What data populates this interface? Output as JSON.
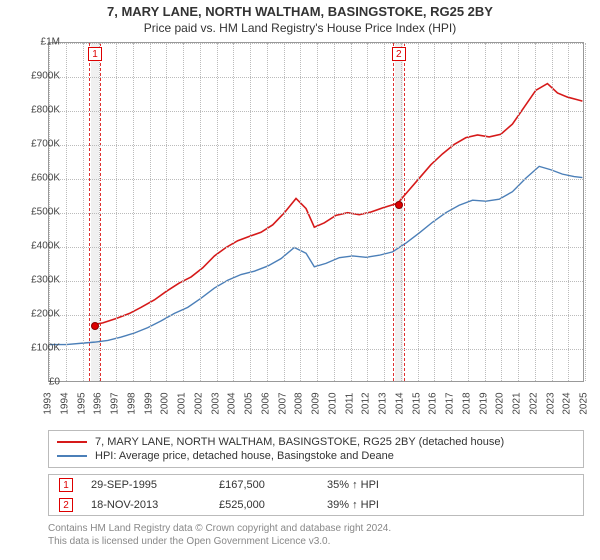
{
  "title": {
    "line1": "7, MARY LANE, NORTH WALTHAM, BASINGSTOKE, RG25 2BY",
    "line2": "Price paid vs. HM Land Registry's House Price Index (HPI)"
  },
  "chart": {
    "type": "line",
    "background_color": "#ffffff",
    "grid_color": "#bbbbbb",
    "axis_color": "#999999",
    "label_fontsize": 10,
    "label_color": "#444444",
    "x": {
      "min": 1993,
      "max": 2025,
      "tick_step": 1,
      "labels": [
        "1993",
        "1994",
        "1995",
        "1996",
        "1997",
        "1998",
        "1999",
        "2000",
        "2001",
        "2002",
        "2003",
        "2004",
        "2005",
        "2006",
        "2007",
        "2008",
        "2009",
        "2010",
        "2011",
        "2012",
        "2013",
        "2014",
        "2015",
        "2016",
        "2017",
        "2018",
        "2019",
        "2020",
        "2021",
        "2022",
        "2023",
        "2024",
        "2025"
      ]
    },
    "y": {
      "min": 0,
      "max": 1000000,
      "tick_step": 100000,
      "labels": [
        "£0",
        "£100K",
        "£200K",
        "£300K",
        "£400K",
        "£500K",
        "£600K",
        "£700K",
        "£800K",
        "£900K",
        "£1M"
      ]
    },
    "series": [
      {
        "id": "property",
        "label": "7, MARY LANE, NORTH WALTHAM, BASINGSTOKE, RG25 2BY (detached house)",
        "color": "#d61a1a",
        "line_width": 1.6,
        "points": [
          [
            1995.7,
            167500
          ],
          [
            1996.2,
            172000
          ],
          [
            1997.0,
            185000
          ],
          [
            1997.8,
            200000
          ],
          [
            1998.5,
            218000
          ],
          [
            1999.3,
            240000
          ],
          [
            2000.0,
            265000
          ],
          [
            2000.8,
            290000
          ],
          [
            2001.5,
            308000
          ],
          [
            2002.2,
            335000
          ],
          [
            2002.9,
            370000
          ],
          [
            2003.6,
            395000
          ],
          [
            2004.3,
            415000
          ],
          [
            2005.0,
            428000
          ],
          [
            2005.7,
            440000
          ],
          [
            2006.4,
            462000
          ],
          [
            2007.1,
            498000
          ],
          [
            2007.8,
            540000
          ],
          [
            2008.4,
            510000
          ],
          [
            2008.9,
            455000
          ],
          [
            2009.5,
            468000
          ],
          [
            2010.2,
            490000
          ],
          [
            2010.9,
            498000
          ],
          [
            2011.6,
            492000
          ],
          [
            2012.3,
            500000
          ],
          [
            2013.0,
            512000
          ],
          [
            2013.9,
            526000
          ],
          [
            2014.5,
            560000
          ],
          [
            2015.2,
            600000
          ],
          [
            2015.9,
            640000
          ],
          [
            2016.6,
            672000
          ],
          [
            2017.3,
            700000
          ],
          [
            2018.0,
            720000
          ],
          [
            2018.7,
            728000
          ],
          [
            2019.4,
            722000
          ],
          [
            2020.1,
            730000
          ],
          [
            2020.8,
            760000
          ],
          [
            2021.5,
            810000
          ],
          [
            2022.2,
            860000
          ],
          [
            2022.9,
            880000
          ],
          [
            2023.5,
            852000
          ],
          [
            2024.1,
            840000
          ],
          [
            2024.7,
            832000
          ],
          [
            2025.0,
            828000
          ]
        ]
      },
      {
        "id": "hpi",
        "label": "HPI: Average price, detached house, Basingstoke and Deane",
        "color": "#4b7fb8",
        "line_width": 1.4,
        "points": [
          [
            1993.0,
            108000
          ],
          [
            1994.0,
            108000
          ],
          [
            1995.0,
            112000
          ],
          [
            1995.7,
            115000
          ],
          [
            1996.5,
            120000
          ],
          [
            1997.3,
            130000
          ],
          [
            1998.1,
            142000
          ],
          [
            1998.9,
            158000
          ],
          [
            1999.7,
            178000
          ],
          [
            2000.5,
            200000
          ],
          [
            2001.3,
            218000
          ],
          [
            2002.1,
            245000
          ],
          [
            2002.9,
            275000
          ],
          [
            2003.7,
            298000
          ],
          [
            2004.5,
            315000
          ],
          [
            2005.3,
            325000
          ],
          [
            2006.1,
            340000
          ],
          [
            2006.9,
            362000
          ],
          [
            2007.7,
            395000
          ],
          [
            2008.4,
            378000
          ],
          [
            2008.9,
            338000
          ],
          [
            2009.6,
            348000
          ],
          [
            2010.4,
            365000
          ],
          [
            2011.2,
            370000
          ],
          [
            2012.0,
            366000
          ],
          [
            2012.8,
            372000
          ],
          [
            2013.6,
            382000
          ],
          [
            2014.4,
            408000
          ],
          [
            2015.2,
            438000
          ],
          [
            2016.0,
            470000
          ],
          [
            2016.8,
            498000
          ],
          [
            2017.6,
            520000
          ],
          [
            2018.4,
            535000
          ],
          [
            2019.2,
            532000
          ],
          [
            2020.0,
            538000
          ],
          [
            2020.8,
            560000
          ],
          [
            2021.6,
            600000
          ],
          [
            2022.4,
            635000
          ],
          [
            2023.1,
            625000
          ],
          [
            2023.8,
            612000
          ],
          [
            2024.5,
            605000
          ],
          [
            2025.0,
            602000
          ]
        ]
      }
    ],
    "transactions": [
      {
        "n": "1",
        "date": "29-SEP-1995",
        "x": 1995.75,
        "price_num": 167500,
        "price": "£167,500",
        "pct": "35% ↑ HPI"
      },
      {
        "n": "2",
        "date": "18-NOV-2013",
        "x": 2013.88,
        "price_num": 525000,
        "price": "£525,000",
        "pct": "39% ↑ HPI"
      }
    ],
    "trans_band_width_years": 0.7,
    "trans_band_fill": "#f0f0f0",
    "trans_band_edge": "#e03030"
  },
  "legend": {
    "border_color": "#bbbbbb",
    "fontsize": 11
  },
  "footnote": {
    "line1": "Contains HM Land Registry data © Crown copyright and database right 2024.",
    "line2": "This data is licensed under the Open Government Licence v3.0."
  }
}
